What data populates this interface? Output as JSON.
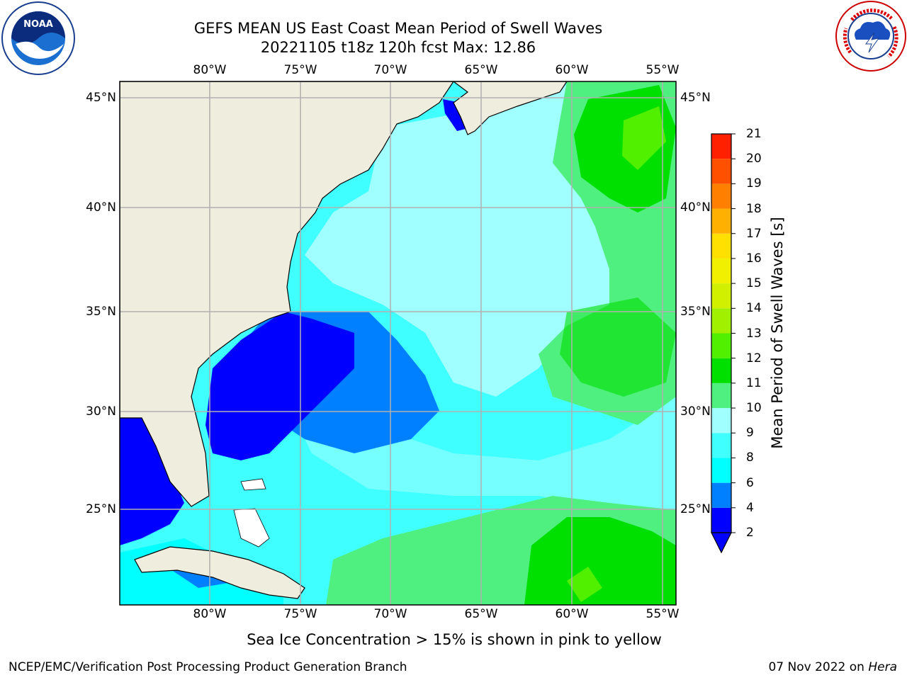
{
  "title": {
    "line1": "GEFS MEAN US East Coast Mean Period of Swell Waves",
    "line2": "20221105 t18z 120h fcst   Max: 12.86"
  },
  "logos": {
    "left": "NOAA",
    "right_ring_text": "NATIONAL WEATHER SERVICE"
  },
  "map": {
    "region": "US East Coast / Western North Atlantic",
    "lon_ticks": [
      "80°W",
      "75°W",
      "70°W",
      "65°W",
      "60°W",
      "55°W"
    ],
    "lat_ticks": [
      "45°N",
      "40°N",
      "35°N",
      "30°N",
      "25°N"
    ],
    "land_color": "#efedde",
    "grid_color": "#b0b0b0"
  },
  "colorbar": {
    "label": "Mean Period of Swell Waves [s]",
    "ticks": [
      "2",
      "4",
      "6",
      "8",
      "9",
      "10",
      "11",
      "12",
      "13",
      "14",
      "15",
      "16",
      "17",
      "18",
      "19",
      "20",
      "21"
    ],
    "colors": [
      "#0000ff",
      "#0080ff",
      "#00ffff",
      "#40ffff",
      "#a0ffff",
      "#50f080",
      "#00e000",
      "#50f000",
      "#a0f000",
      "#d0f000",
      "#f0f000",
      "#ffe000",
      "#ffb000",
      "#ff8000",
      "#ff5000",
      "#ff2000"
    ],
    "extend": "min"
  },
  "footnote": "Sea Ice Concentration > 15% is shown in pink to yellow",
  "credit": "NCEP/EMC/Verification Post Processing Product Generation Branch",
  "date_text": "07 Nov 2022 on ",
  "date_host": "Hera"
}
